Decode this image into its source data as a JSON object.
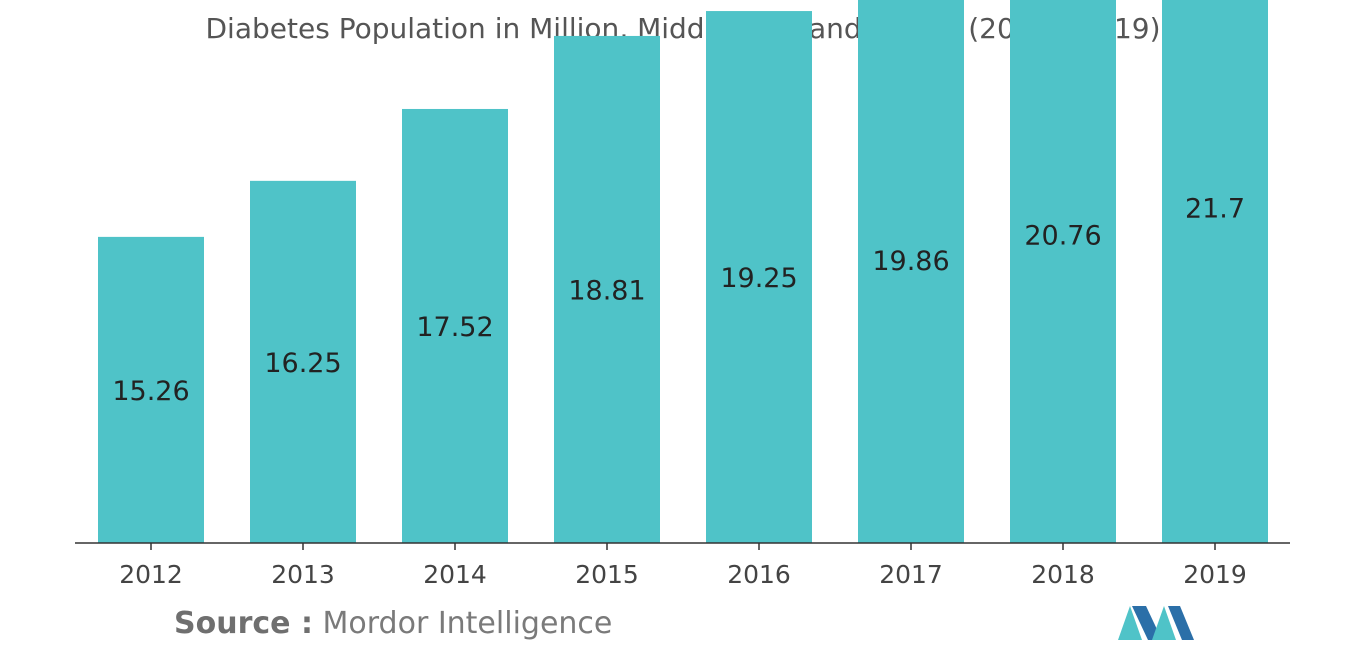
{
  "chart_data": {
    "type": "bar",
    "title": "Diabetes Population in Million, Middle-East and Africa, (2012 - 2019)",
    "xlabel": "",
    "ylabel": "",
    "categories": [
      "2012",
      "2013",
      "2014",
      "2015",
      "2016",
      "2017",
      "2018",
      "2019"
    ],
    "values": [
      15.26,
      16.25,
      17.52,
      18.81,
      19.25,
      19.86,
      20.76,
      21.7
    ],
    "value_labels": [
      "15.26",
      "16.25",
      "17.52",
      "18.81",
      "19.25",
      "19.86",
      "20.76",
      "21.7"
    ],
    "grid": false,
    "legend": "none",
    "bar_color": "#4fc3c8",
    "axis_color": "#333333"
  },
  "source": {
    "label": "Source :",
    "text": "Mordor Intelligence"
  },
  "logo": {
    "icon": "mordor-intelligence-logo",
    "colors": [
      "#2b6fa8",
      "#4fc3c8"
    ]
  }
}
